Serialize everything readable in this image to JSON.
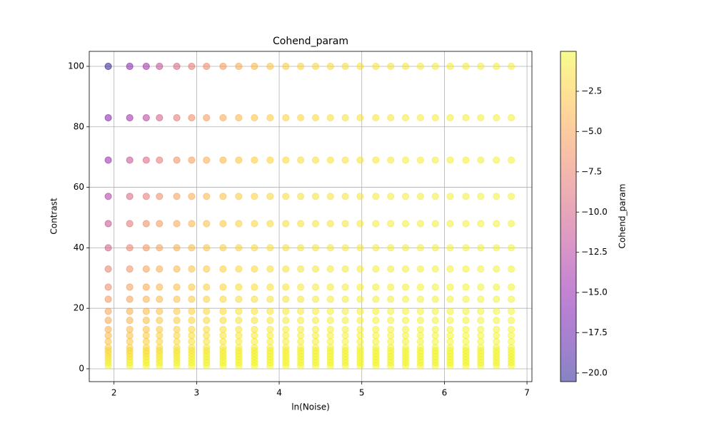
{
  "chart_data": {
    "type": "scatter",
    "title": "Cohend_param",
    "xlabel": "ln(Noise)",
    "ylabel": "Contrast",
    "colorbar_label": "Cohend_param",
    "colormap": "plasma",
    "alpha": 0.5,
    "grid": true,
    "xlim": [
      1.7,
      7.06
    ],
    "xticks": [
      2,
      3,
      4,
      5,
      6,
      7
    ],
    "ylim": [
      -4.25,
      104.95
    ],
    "yticks": [
      0,
      20,
      40,
      60,
      80,
      100
    ],
    "clim": [
      -20.53,
      -0.02
    ],
    "cticks": [
      {
        "value": -2.5,
        "label": "−2.5"
      },
      {
        "value": -5.0,
        "label": "−5.0"
      },
      {
        "value": -7.5,
        "label": "−7.5"
      },
      {
        "value": -10.0,
        "label": "−10.0"
      },
      {
        "value": -12.5,
        "label": "−12.5"
      },
      {
        "value": -15.0,
        "label": "−15.0"
      },
      {
        "value": -17.5,
        "label": "−17.5"
      },
      {
        "value": -20.0,
        "label": "−20.0"
      }
    ],
    "x": [
      1.93,
      2.19,
      2.39,
      2.55,
      2.76,
      2.94,
      3.12,
      3.32,
      3.51,
      3.7,
      3.89,
      4.08,
      4.26,
      4.44,
      4.62,
      4.8,
      4.98,
      5.17,
      5.35,
      5.53,
      5.71,
      5.89,
      6.07,
      6.26,
      6.44,
      6.63,
      6.81
    ],
    "y": [
      100,
      83,
      69,
      57,
      48,
      40,
      33,
      27,
      23,
      19,
      16,
      13,
      11,
      9,
      7,
      6,
      5,
      4,
      3,
      2,
      1
    ],
    "values": [
      [
        -20.2,
        -15.5,
        -13.8,
        -11.5,
        -9.5,
        -8.0,
        -6.8,
        -5.6,
        -4.6,
        -3.8,
        -3.1,
        -2.6,
        -2.2,
        -1.9,
        -1.7,
        -1.5,
        -1.3,
        -1.2,
        -1.1,
        -1.0,
        -0.9,
        -0.8,
        -0.8,
        -0.7,
        -0.7,
        -0.6,
        -0.6
      ],
      [
        -15.8,
        -14.2,
        -12.4,
        -10.2,
        -8.2,
        -6.8,
        -5.6,
        -4.6,
        -3.8,
        -3.1,
        -2.6,
        -2.2,
        -1.9,
        -1.7,
        -1.5,
        -1.3,
        -1.2,
        -1.1,
        -1.0,
        -0.9,
        -0.8,
        -0.8,
        -0.7,
        -0.7,
        -0.6,
        -0.6,
        -0.5
      ],
      [
        -14.6,
        -11.2,
        -9.6,
        -8.0,
        -6.4,
        -5.3,
        -4.4,
        -3.6,
        -3.0,
        -2.5,
        -2.1,
        -1.8,
        -1.6,
        -1.4,
        -1.3,
        -1.2,
        -1.1,
        -1.0,
        -0.9,
        -0.8,
        -0.8,
        -0.7,
        -0.7,
        -0.6,
        -0.6,
        -0.5,
        -0.5
      ],
      [
        -13.0,
        -9.6,
        -8.0,
        -6.6,
        -5.4,
        -4.5,
        -3.7,
        -3.1,
        -2.6,
        -2.2,
        -1.9,
        -1.6,
        -1.4,
        -1.3,
        -1.2,
        -1.1,
        -1.0,
        -0.9,
        -0.8,
        -0.8,
        -0.7,
        -0.7,
        -0.6,
        -0.6,
        -0.5,
        -0.5,
        -0.5
      ],
      [
        -11.2,
        -8.2,
        -6.6,
        -5.6,
        -4.6,
        -3.8,
        -3.2,
        -2.7,
        -2.3,
        -1.9,
        -1.7,
        -1.5,
        -1.3,
        -1.2,
        -1.1,
        -1.0,
        -0.9,
        -0.8,
        -0.8,
        -0.7,
        -0.7,
        -0.6,
        -0.6,
        -0.5,
        -0.5,
        -0.5,
        -0.4
      ],
      [
        -10.0,
        -7.2,
        -6.0,
        -5.0,
        -4.1,
        -3.4,
        -2.9,
        -2.4,
        -2.1,
        -1.8,
        -1.6,
        -1.4,
        -1.2,
        -1.1,
        -1.0,
        -0.9,
        -0.9,
        -0.8,
        -0.7,
        -0.7,
        -0.6,
        -0.6,
        -0.5,
        -0.5,
        -0.5,
        -0.4,
        -0.4
      ],
      [
        -7.6,
        -6.2,
        -5.2,
        -4.4,
        -3.6,
        -3.0,
        -2.6,
        -2.2,
        -1.9,
        -1.7,
        -1.5,
        -1.3,
        -1.1,
        -1.0,
        -0.9,
        -0.9,
        -0.8,
        -0.7,
        -0.7,
        -0.6,
        -0.6,
        -0.5,
        -0.5,
        -0.5,
        -0.4,
        -0.4,
        -0.4
      ],
      [
        -6.6,
        -5.4,
        -4.6,
        -3.8,
        -3.2,
        -2.7,
        -2.3,
        -2.0,
        -1.7,
        -1.5,
        -1.3,
        -1.2,
        -1.0,
        -0.9,
        -0.9,
        -0.8,
        -0.7,
        -0.7,
        -0.6,
        -0.6,
        -0.5,
        -0.5,
        -0.5,
        -0.4,
        -0.4,
        -0.4,
        -0.4
      ],
      [
        -5.8,
        -5.0,
        -4.2,
        -3.5,
        -3.0,
        -2.5,
        -2.1,
        -1.8,
        -1.6,
        -1.4,
        -1.2,
        -1.1,
        -1.0,
        -0.9,
        -0.8,
        -0.7,
        -0.7,
        -0.6,
        -0.6,
        -0.5,
        -0.5,
        -0.5,
        -0.4,
        -0.4,
        -0.4,
        -0.4,
        -0.3
      ],
      [
        -5.0,
        -4.4,
        -3.7,
        -3.1,
        -2.6,
        -2.2,
        -1.9,
        -1.6,
        -1.4,
        -1.2,
        -1.1,
        -1.0,
        -0.9,
        -0.8,
        -0.7,
        -0.7,
        -0.6,
        -0.6,
        -0.5,
        -0.5,
        -0.5,
        -0.4,
        -0.4,
        -0.4,
        -0.4,
        -0.3,
        -0.3
      ],
      [
        -4.6,
        -4.0,
        -3.4,
        -2.8,
        -2.4,
        -2.0,
        -1.7,
        -1.5,
        -1.3,
        -1.1,
        -1.0,
        -0.9,
        -0.8,
        -0.7,
        -0.7,
        -0.6,
        -0.6,
        -0.5,
        -0.5,
        -0.5,
        -0.4,
        -0.4,
        -0.4,
        -0.4,
        -0.3,
        -0.3,
        -0.3
      ],
      [
        -4.0,
        -3.5,
        -3.0,
        -2.5,
        -2.1,
        -1.8,
        -1.5,
        -1.3,
        -1.1,
        -1.0,
        -0.9,
        -0.8,
        -0.7,
        -0.7,
        -0.6,
        -0.6,
        -0.5,
        -0.5,
        -0.5,
        -0.4,
        -0.4,
        -0.4,
        -0.4,
        -0.3,
        -0.3,
        -0.3,
        -0.3
      ],
      [
        -3.5,
        -3.1,
        -2.6,
        -2.2,
        -1.9,
        -1.6,
        -1.4,
        -1.2,
        -1.0,
        -0.9,
        -0.8,
        -0.7,
        -0.7,
        -0.6,
        -0.6,
        -0.5,
        -0.5,
        -0.5,
        -0.4,
        -0.4,
        -0.4,
        -0.4,
        -0.3,
        -0.3,
        -0.3,
        -0.3,
        -0.3
      ],
      [
        -3.0,
        -2.7,
        -2.3,
        -1.9,
        -1.6,
        -1.4,
        -1.2,
        -1.0,
        -0.9,
        -0.8,
        -0.7,
        -0.7,
        -0.6,
        -0.6,
        -0.5,
        -0.5,
        -0.5,
        -0.4,
        -0.4,
        -0.4,
        -0.4,
        -0.3,
        -0.3,
        -0.3,
        -0.3,
        -0.3,
        -0.3
      ],
      [
        -2.4,
        -2.2,
        -1.9,
        -1.6,
        -1.4,
        -1.2,
        -1.0,
        -0.9,
        -0.8,
        -0.7,
        -0.6,
        -0.6,
        -0.5,
        -0.5,
        -0.5,
        -0.4,
        -0.4,
        -0.4,
        -0.4,
        -0.3,
        -0.3,
        -0.3,
        -0.3,
        -0.3,
        -0.3,
        -0.3,
        -0.3
      ],
      [
        -2.0,
        -1.8,
        -1.6,
        -1.4,
        -1.2,
        -1.0,
        -0.9,
        -0.8,
        -0.7,
        -0.6,
        -0.6,
        -0.5,
        -0.5,
        -0.5,
        -0.4,
        -0.4,
        -0.4,
        -0.4,
        -0.3,
        -0.3,
        -0.3,
        -0.3,
        -0.3,
        -0.3,
        -0.3,
        -0.3,
        -0.3
      ],
      [
        -1.6,
        -1.5,
        -1.3,
        -1.1,
        -1.0,
        -0.9,
        -0.8,
        -0.7,
        -0.6,
        -0.6,
        -0.5,
        -0.5,
        -0.4,
        -0.4,
        -0.4,
        -0.4,
        -0.3,
        -0.3,
        -0.3,
        -0.3,
        -0.3,
        -0.3,
        -0.3,
        -0.3,
        -0.3,
        -0.3,
        -0.3
      ],
      [
        -1.3,
        -1.2,
        -1.0,
        -0.9,
        -0.8,
        -0.7,
        -0.6,
        -0.6,
        -0.5,
        -0.5,
        -0.4,
        -0.4,
        -0.4,
        -0.4,
        -0.3,
        -0.3,
        -0.3,
        -0.3,
        -0.3,
        -0.3,
        -0.3,
        -0.3,
        -0.3,
        -0.3,
        -0.3,
        -0.3,
        -0.3
      ],
      [
        -1.0,
        -0.9,
        -0.8,
        -0.7,
        -0.6,
        -0.5,
        -0.5,
        -0.4,
        -0.4,
        -0.4,
        -0.4,
        -0.3,
        -0.3,
        -0.3,
        -0.3,
        -0.3,
        -0.3,
        -0.3,
        -0.3,
        -0.3,
        -0.3,
        -0.3,
        -0.3,
        -0.3,
        -0.3,
        -0.3,
        -0.3
      ],
      [
        -0.7,
        -0.6,
        -0.5,
        -0.5,
        -0.4,
        -0.4,
        -0.4,
        -0.3,
        -0.3,
        -0.3,
        -0.3,
        -0.3,
        -0.3,
        -0.3,
        -0.3,
        -0.3,
        -0.3,
        -0.3,
        -0.3,
        -0.3,
        -0.3,
        -0.3,
        -0.3,
        -0.3,
        -0.3,
        -0.3,
        -0.3
      ],
      [
        -0.4,
        -0.4,
        -0.3,
        -0.3,
        -0.3,
        -0.3,
        -0.3,
        -0.3,
        -0.3,
        -0.3,
        -0.3,
        -0.3,
        -0.3,
        -0.3,
        -0.3,
        -0.3,
        -0.3,
        -0.3,
        -0.3,
        -0.3,
        -0.3,
        -0.3,
        -0.3,
        -0.3,
        -0.3,
        -0.3,
        -0.3
      ]
    ]
  }
}
